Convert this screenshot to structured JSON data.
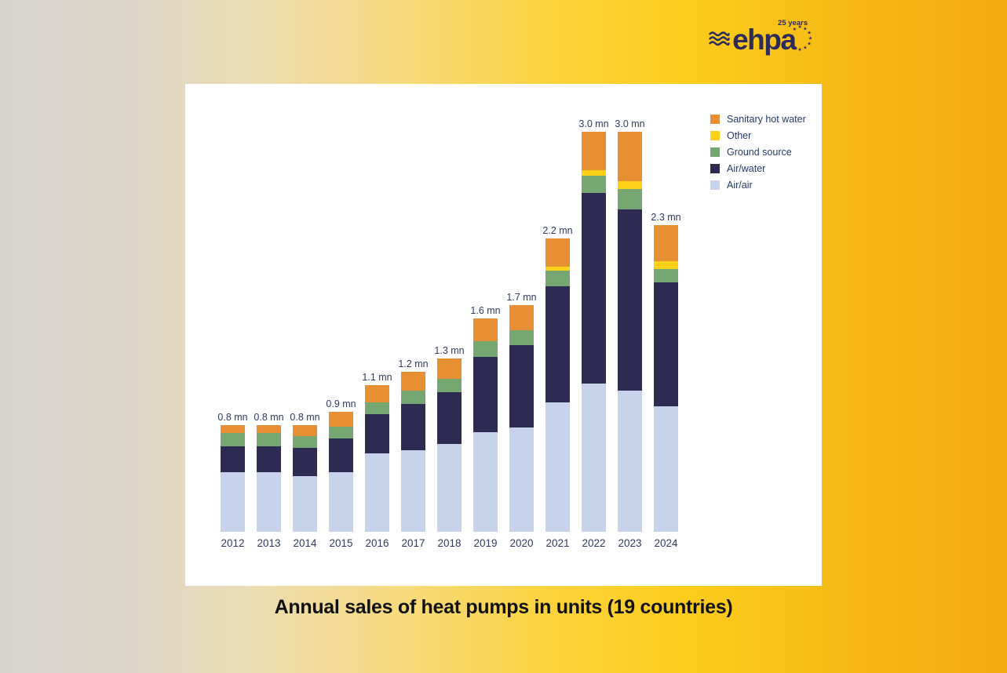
{
  "logo": {
    "brand": "ehpa",
    "anniversary": "25 years"
  },
  "caption": "Annual sales of heat pumps in units (19 countries)",
  "colors": {
    "background_left": "#d8d5d1",
    "background_right": "#f2ab11",
    "panel": "#ffffff",
    "navy_text": "#2d3a64",
    "logo_navy": "#2b2c5a"
  },
  "chart_data": {
    "type": "bar",
    "stacked": true,
    "title": "Annual sales of heat pumps in units (19 countries)",
    "unit": "mn (millions of units)",
    "grid": false,
    "axes_visible": false,
    "legend_position": "top-right",
    "categories": [
      "2012",
      "2013",
      "2014",
      "2015",
      "2016",
      "2017",
      "2018",
      "2019",
      "2020",
      "2021",
      "2022",
      "2023",
      "2024"
    ],
    "bar_total_labels": [
      "0.8 mn",
      "0.8 mn",
      "0.8 mn",
      "0.9 mn",
      "1.1 mn",
      "1.2 mn",
      "1.3 mn",
      "1.6 mn",
      "1.7 mn",
      "2.2 mn",
      "3.0 mn",
      "3.0 mn",
      "2.3 mn"
    ],
    "totals_mn": [
      0.8,
      0.8,
      0.8,
      0.9,
      1.1,
      1.2,
      1.3,
      1.6,
      1.7,
      2.2,
      3.0,
      3.0,
      2.3
    ],
    "series": [
      {
        "name": "Air/air",
        "color": "#c7d3ea",
        "values": [
          0.45,
          0.45,
          0.42,
          0.45,
          0.59,
          0.61,
          0.66,
          0.75,
          0.78,
          0.97,
          1.11,
          1.06,
          0.94
        ]
      },
      {
        "name": "Air/water",
        "color": "#2e2b52",
        "values": [
          0.19,
          0.19,
          0.21,
          0.25,
          0.29,
          0.35,
          0.39,
          0.56,
          0.62,
          0.87,
          1.43,
          1.36,
          0.93
        ]
      },
      {
        "name": "Ground source",
        "color": "#76a671",
        "values": [
          0.1,
          0.1,
          0.09,
          0.09,
          0.09,
          0.1,
          0.1,
          0.12,
          0.11,
          0.12,
          0.13,
          0.15,
          0.1
        ]
      },
      {
        "name": "Other",
        "color": "#fdd118",
        "values": [
          0,
          0,
          0,
          0,
          0,
          0,
          0,
          0,
          0,
          0.03,
          0.04,
          0.06,
          0.06
        ]
      },
      {
        "name": "Sanitary hot water",
        "color": "#e78f33",
        "values": [
          0.06,
          0.06,
          0.08,
          0.11,
          0.13,
          0.14,
          0.15,
          0.17,
          0.19,
          0.21,
          0.29,
          0.37,
          0.27
        ]
      }
    ],
    "legend": [
      {
        "label": "Sanitary hot water",
        "color": "#e78f33"
      },
      {
        "label": "Other",
        "color": "#fdd118"
      },
      {
        "label": "Ground source",
        "color": "#76a671"
      },
      {
        "label": "Air/water",
        "color": "#2e2b52"
      },
      {
        "label": "Air/air",
        "color": "#c7d3ea"
      }
    ]
  }
}
